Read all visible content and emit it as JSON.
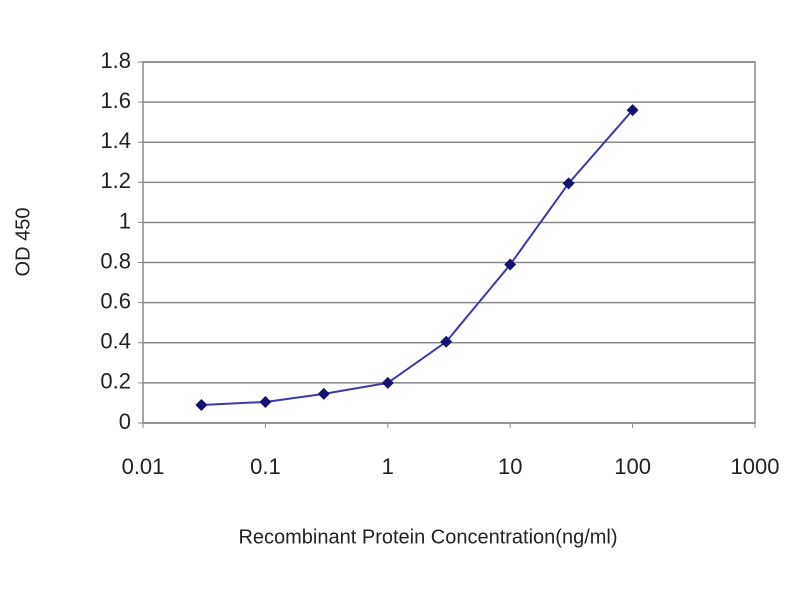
{
  "chart_data": {
    "type": "line",
    "x_label": "Recombinant Protein Concentration(ng/ml)",
    "y_label": "OD 450",
    "x": [
      0.03,
      0.1,
      0.3,
      1,
      3,
      10,
      30,
      100
    ],
    "series": [
      {
        "color": "#3a3aa8",
        "values": [
          0.09,
          0.105,
          0.145,
          0.2,
          0.405,
          0.79,
          1.195,
          1.56
        ]
      }
    ],
    "xlim": [
      0.01,
      1000
    ],
    "xticks": [
      0.01,
      0.1,
      1,
      10,
      100,
      1000
    ],
    "xscale": "log",
    "ylim": [
      0,
      1.8
    ],
    "yticks": [
      0,
      0.2,
      0.4,
      0.6,
      0.8,
      1,
      1.2,
      1.4,
      1.6,
      1.8
    ],
    "grid": true,
    "marker_color": "#14146e"
  }
}
